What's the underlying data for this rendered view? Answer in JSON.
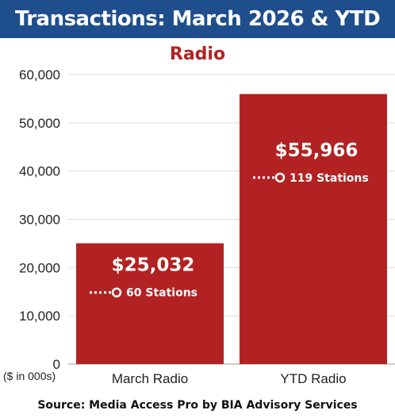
{
  "header": {
    "title": "Transactions: March 2026 & YTD"
  },
  "chart_data": {
    "type": "bar",
    "title": "Radio",
    "categories": [
      "March Radio",
      "YTD Radio"
    ],
    "values": [
      25032,
      55966
    ],
    "value_labels": [
      "$25,032",
      "$55,966"
    ],
    "station_labels": [
      "60 Stations",
      "119 Stations"
    ],
    "ylim": [
      0,
      60000
    ],
    "yticks": [
      0,
      10000,
      20000,
      30000,
      40000,
      50000,
      60000
    ],
    "ytick_labels": [
      "0",
      "10,000",
      "20,000",
      "30,000",
      "40,000",
      "50,000",
      "60,000"
    ],
    "unit_note": "($ in 000s)",
    "grid": true,
    "bar_color": "#b22222"
  },
  "footer": {
    "source": "Source: Media Access Pro by BIA Advisory Services"
  }
}
